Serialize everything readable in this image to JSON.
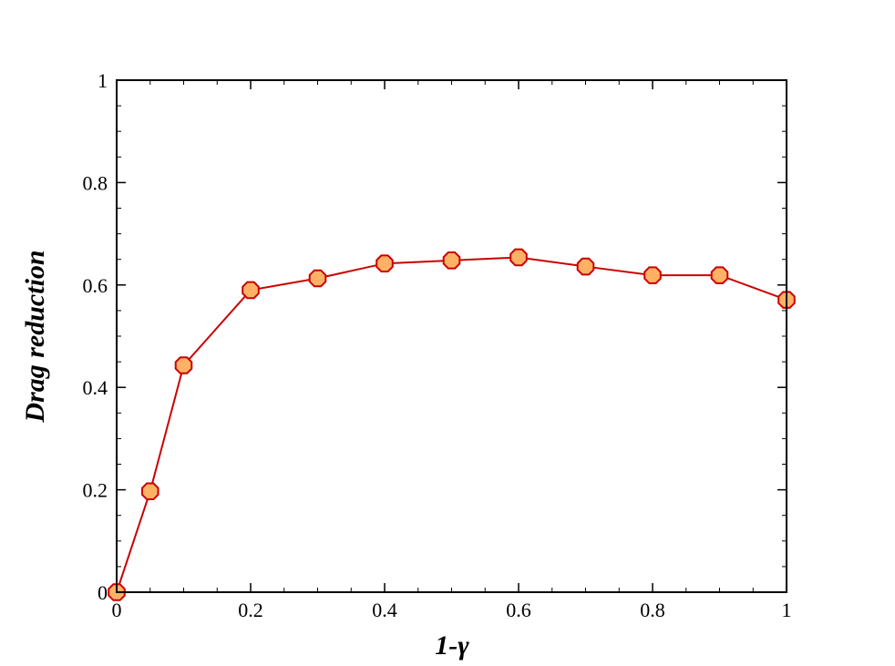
{
  "chart_data": {
    "type": "line",
    "xlabel": "1-γ",
    "ylabel": "Drag reduction",
    "xlim": [
      0,
      1
    ],
    "ylim": [
      0,
      1
    ],
    "x_ticks": [
      0,
      0.2,
      0.4,
      0.6,
      0.8,
      1
    ],
    "x_tick_labels": [
      "0",
      "0.2",
      "0.4",
      "0.6",
      "0.8",
      "1"
    ],
    "y_ticks": [
      0,
      0.2,
      0.4,
      0.6,
      0.8,
      1
    ],
    "y_tick_labels": [
      "0",
      "0.2",
      "0.4",
      "0.6",
      "0.8",
      "1"
    ],
    "grid": false,
    "legend": "none",
    "series": [
      {
        "x": [
          0,
          0.05,
          0.1,
          0.2,
          0.3,
          0.4,
          0.5,
          0.6,
          0.7,
          0.8,
          0.9,
          1.0
        ],
        "y": [
          0.0,
          0.197,
          0.443,
          0.59,
          0.613,
          0.642,
          0.648,
          0.654,
          0.636,
          0.619,
          0.619,
          0.571
        ],
        "line_color": "#cc0000",
        "marker": "octagon",
        "marker_fill": "#ffb266",
        "marker_edge": "#cc0000"
      }
    ]
  }
}
